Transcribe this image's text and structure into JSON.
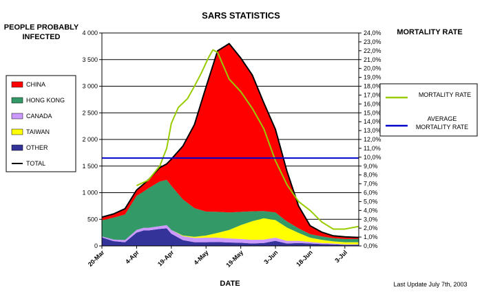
{
  "chart_data": {
    "type": "area",
    "title": "SARS STATISTICS",
    "ylabel_left": [
      "PEOPLE PROBABLY",
      "INFECTED"
    ],
    "ylabel_right": "MORTALITY RATE",
    "xlabel": "DATE",
    "footer": "Last Update July 7th, 2003",
    "x_tick_labels": [
      "20-Mar",
      "4-Apr",
      "19-Apr",
      "4-May",
      "19-May",
      "3-Jun",
      "18-Jun",
      "3-Jul"
    ],
    "x_days": [
      0,
      15,
      30,
      45,
      60,
      75,
      90,
      105
    ],
    "x_range": [
      0,
      111
    ],
    "ylim_left": [
      0,
      4000
    ],
    "y_ticks_left": [
      "0",
      "500",
      "1 000",
      "1 500",
      "2 000",
      "2 500",
      "3 000",
      "3 500",
      "4 000"
    ],
    "ylim_right": [
      0,
      24
    ],
    "y_ticks_right": [
      "0,0%",
      "1,0%",
      "2,0%",
      "3,0%",
      "4,0%",
      "5,0%",
      "6,0%",
      "7,0%",
      "8,0%",
      "9,0%",
      "10,0%",
      "11,0%",
      "12,0%",
      "13,0%",
      "14,0%",
      "15,0%",
      "16,0%",
      "17,0%",
      "18,0%",
      "19,0%",
      "20,0%",
      "21,0%",
      "22,0%",
      "23,0%",
      "24,0%"
    ],
    "grid": "horizontal",
    "legend_position": "left",
    "colors": {
      "CHINA": "#ff0000",
      "HONG KONG": "#339966",
      "CANADA": "#cc99ff",
      "TAIWAN": "#ffff00",
      "OTHER": "#333399",
      "TOTAL": "#000000",
      "MORTALITY RATE": "#99cc00",
      "AVERAGE MORTALITY RATE": "#0000cc"
    },
    "days": [
      0,
      5,
      10,
      15,
      18,
      20,
      25,
      28,
      30,
      35,
      40,
      45,
      50,
      55,
      60,
      65,
      70,
      75,
      80,
      85,
      90,
      95,
      100,
      105,
      111
    ],
    "series": [
      {
        "name": "OTHER",
        "values": [
          160,
          90,
          70,
          250,
          290,
          290,
          320,
          330,
          230,
          110,
          70,
          70,
          75,
          65,
          60,
          45,
          55,
          95,
          45,
          55,
          45,
          35,
          30,
          20,
          20
        ]
      },
      {
        "name": "CANADA",
        "values": [
          20,
          30,
          40,
          50,
          50,
          50,
          50,
          60,
          70,
          75,
          80,
          85,
          80,
          75,
          70,
          70,
          65,
          60,
          50,
          40,
          30,
          20,
          15,
          10,
          10
        ]
      },
      {
        "name": "TAIWAN",
        "values": [
          0,
          0,
          0,
          0,
          0,
          0,
          0,
          0,
          0,
          10,
          20,
          40,
          90,
          160,
          260,
          350,
          400,
          330,
          250,
          150,
          80,
          60,
          40,
          40,
          40
        ]
      },
      {
        "name": "HONG KONG",
        "values": [
          300,
          410,
          480,
          640,
          680,
          740,
          840,
          850,
          830,
          680,
          540,
          450,
          395,
          330,
          250,
          185,
          135,
          145,
          115,
          85,
          65,
          65,
          60,
          60,
          60
        ]
      },
      {
        "name": "CHINA",
        "values": [
          60,
          70,
          110,
          110,
          140,
          160,
          260,
          300,
          500,
          1000,
          1570,
          2340,
          3030,
          3170,
          2890,
          2560,
          2030,
          1560,
          940,
          420,
          160,
          80,
          45,
          40,
          30
        ]
      }
    ],
    "total": [
      540,
      600,
      700,
      1050,
      1160,
      1240,
      1470,
      1540,
      1630,
      1875,
      2280,
      2985,
      3665,
      3800,
      3530,
      3210,
      2685,
      2190,
      1400,
      750,
      380,
      260,
      190,
      170,
      160
    ],
    "mortality_rate": {
      "days": [
        15,
        20,
        25,
        28,
        30,
        33,
        37,
        40,
        43,
        46,
        48,
        50,
        52,
        55,
        60,
        65,
        70,
        75,
        80,
        85,
        90,
        95,
        100,
        105,
        111
      ],
      "values": [
        6.8,
        7.4,
        9.0,
        11.0,
        13.8,
        15.6,
        16.6,
        18.0,
        19.5,
        21.2,
        22.1,
        21.8,
        20.6,
        18.8,
        17.4,
        15.5,
        13.2,
        9.6,
        6.9,
        5.0,
        4.0,
        2.7,
        1.9,
        1.9,
        2.2
      ]
    },
    "average_mortality_rate": 9.9,
    "legend": [
      "CHINA",
      "HONG KONG",
      "CANADA",
      "TAIWAN",
      "OTHER",
      "TOTAL"
    ],
    "legend_right": [
      "MORTALITY RATE",
      [
        "AVERAGE",
        "MORTALITY RATE"
      ]
    ]
  }
}
